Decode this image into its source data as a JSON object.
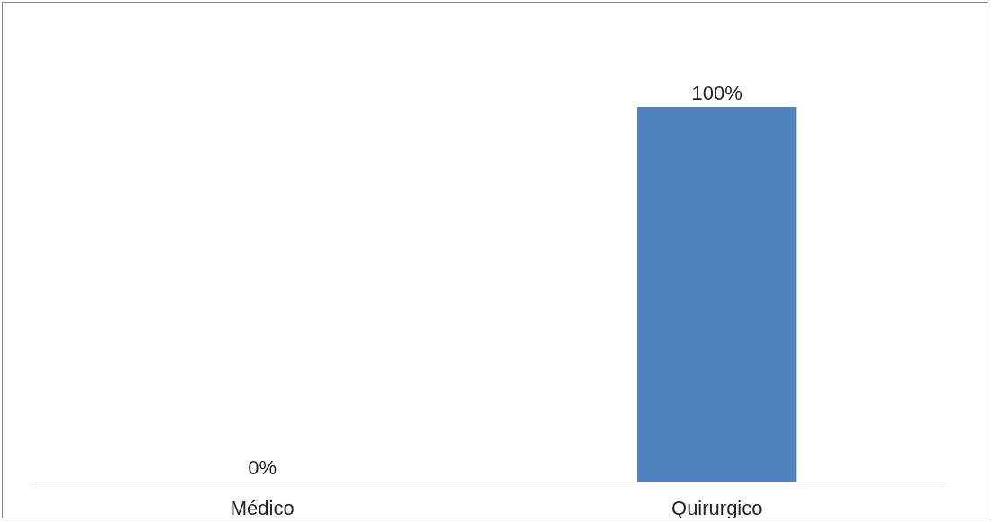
{
  "chart_data": {
    "type": "bar",
    "categories": [
      "Médico",
      "Quirurgico"
    ],
    "values": [
      0,
      100
    ],
    "value_labels": [
      "0%",
      "100%"
    ],
    "color": "#4f81bd",
    "tick_labels": "x"
  }
}
